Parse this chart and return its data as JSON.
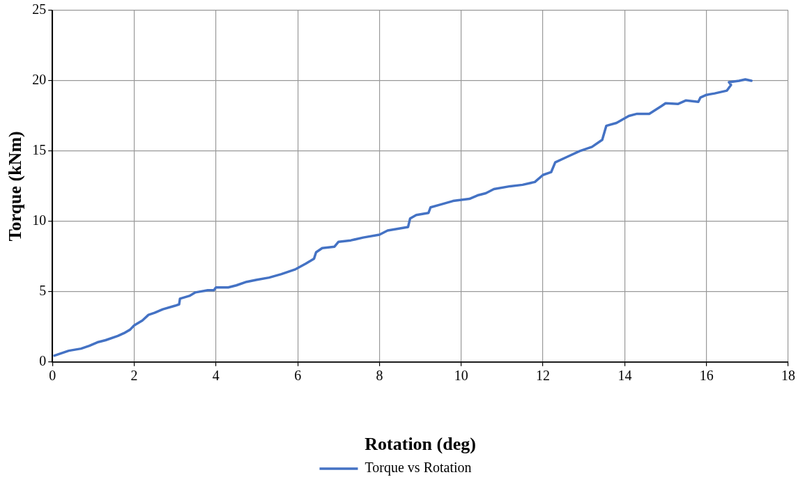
{
  "chart_data": {
    "type": "line",
    "xlabel": "Rotation (deg)",
    "ylabel": "Torque (kNm)",
    "xlim": [
      0,
      18
    ],
    "xticks": [
      0,
      2,
      4,
      6,
      8,
      10,
      12,
      14,
      16,
      18
    ],
    "ylim": [
      0,
      25
    ],
    "yticks": [
      0,
      5,
      10,
      15,
      20,
      25
    ],
    "grid": true,
    "legend": "bottom",
    "marker": "none",
    "line_style": "solid",
    "series": [
      {
        "name": "Torque vs Rotation",
        "color": "#4472c4",
        "x": [
          0.05,
          0.2,
          0.4,
          0.7,
          0.9,
          1.1,
          1.3,
          1.6,
          1.75,
          1.9,
          2.0,
          2.2,
          2.35,
          2.5,
          2.7,
          3.0,
          3.1,
          3.12,
          3.35,
          3.5,
          3.8,
          3.95,
          4.0,
          4.3,
          4.5,
          4.75,
          5.0,
          5.3,
          5.6,
          5.95,
          6.2,
          6.4,
          6.45,
          6.6,
          6.9,
          7.0,
          7.3,
          7.6,
          8.0,
          8.2,
          8.5,
          8.7,
          8.75,
          8.9,
          9.2,
          9.25,
          9.5,
          9.8,
          10.2,
          10.4,
          10.6,
          10.8,
          11.2,
          11.5,
          11.8,
          12.0,
          12.2,
          12.3,
          12.6,
          12.9,
          13.2,
          13.45,
          13.55,
          13.8,
          14.1,
          14.3,
          14.6,
          14.9,
          15.0,
          15.3,
          15.5,
          15.8,
          15.85,
          16.0,
          16.2,
          16.5,
          16.6,
          16.55,
          16.8,
          16.95,
          17.1
        ],
        "values": [
          0.45,
          0.6,
          0.8,
          0.95,
          1.15,
          1.4,
          1.55,
          1.85,
          2.05,
          2.3,
          2.6,
          2.95,
          3.35,
          3.5,
          3.75,
          4.0,
          4.1,
          4.5,
          4.7,
          4.95,
          5.1,
          5.1,
          5.3,
          5.3,
          5.45,
          5.7,
          5.85,
          6.0,
          6.25,
          6.6,
          7.0,
          7.35,
          7.8,
          8.1,
          8.2,
          8.55,
          8.65,
          8.85,
          9.05,
          9.35,
          9.5,
          9.6,
          10.2,
          10.45,
          10.6,
          11.0,
          11.2,
          11.45,
          11.6,
          11.85,
          12.0,
          12.3,
          12.5,
          12.6,
          12.8,
          13.3,
          13.5,
          14.2,
          14.6,
          15.0,
          15.3,
          15.8,
          16.8,
          17.0,
          17.5,
          17.65,
          17.65,
          18.2,
          18.4,
          18.35,
          18.6,
          18.5,
          18.8,
          19.0,
          19.1,
          19.3,
          19.7,
          19.9,
          20.0,
          20.1,
          20.0
        ]
      }
    ]
  }
}
